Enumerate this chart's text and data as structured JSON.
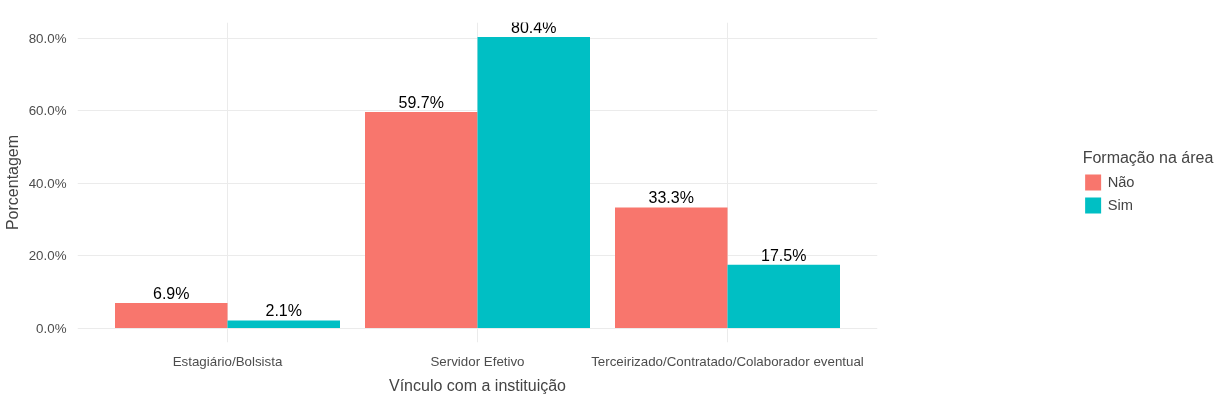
{
  "chart_data": {
    "type": "bar",
    "xlabel": "Vínculo com a instituição",
    "ylabel": "Porcentagem",
    "legend_title": "Formação na área",
    "categories": [
      "Estagiário/Bolsista",
      "Servidor Efetivo",
      "Terceirizado/Contratado/Colaborador eventual"
    ],
    "series": [
      {
        "name": "Não",
        "color": "#f8766d",
        "values": [
          6.9,
          59.7,
          33.3
        ],
        "value_labels": [
          "6.9%",
          "59.7%",
          "33.3%"
        ]
      },
      {
        "name": "Sim",
        "color": "#00bfc4",
        "values": [
          2.1,
          80.4,
          17.5
        ],
        "value_labels": [
          "2.1%",
          "80.4%",
          "17.5%"
        ]
      }
    ],
    "ylim": [
      -4,
      84.4
    ],
    "yticks": [
      {
        "value": 0,
        "label": "0.0%"
      },
      {
        "value": 20,
        "label": "20.0%"
      },
      {
        "value": 40,
        "label": "40.0%"
      },
      {
        "value": 60,
        "label": "60.0%"
      },
      {
        "value": 80,
        "label": "80.0%"
      }
    ],
    "grid": true,
    "legend": "right"
  }
}
